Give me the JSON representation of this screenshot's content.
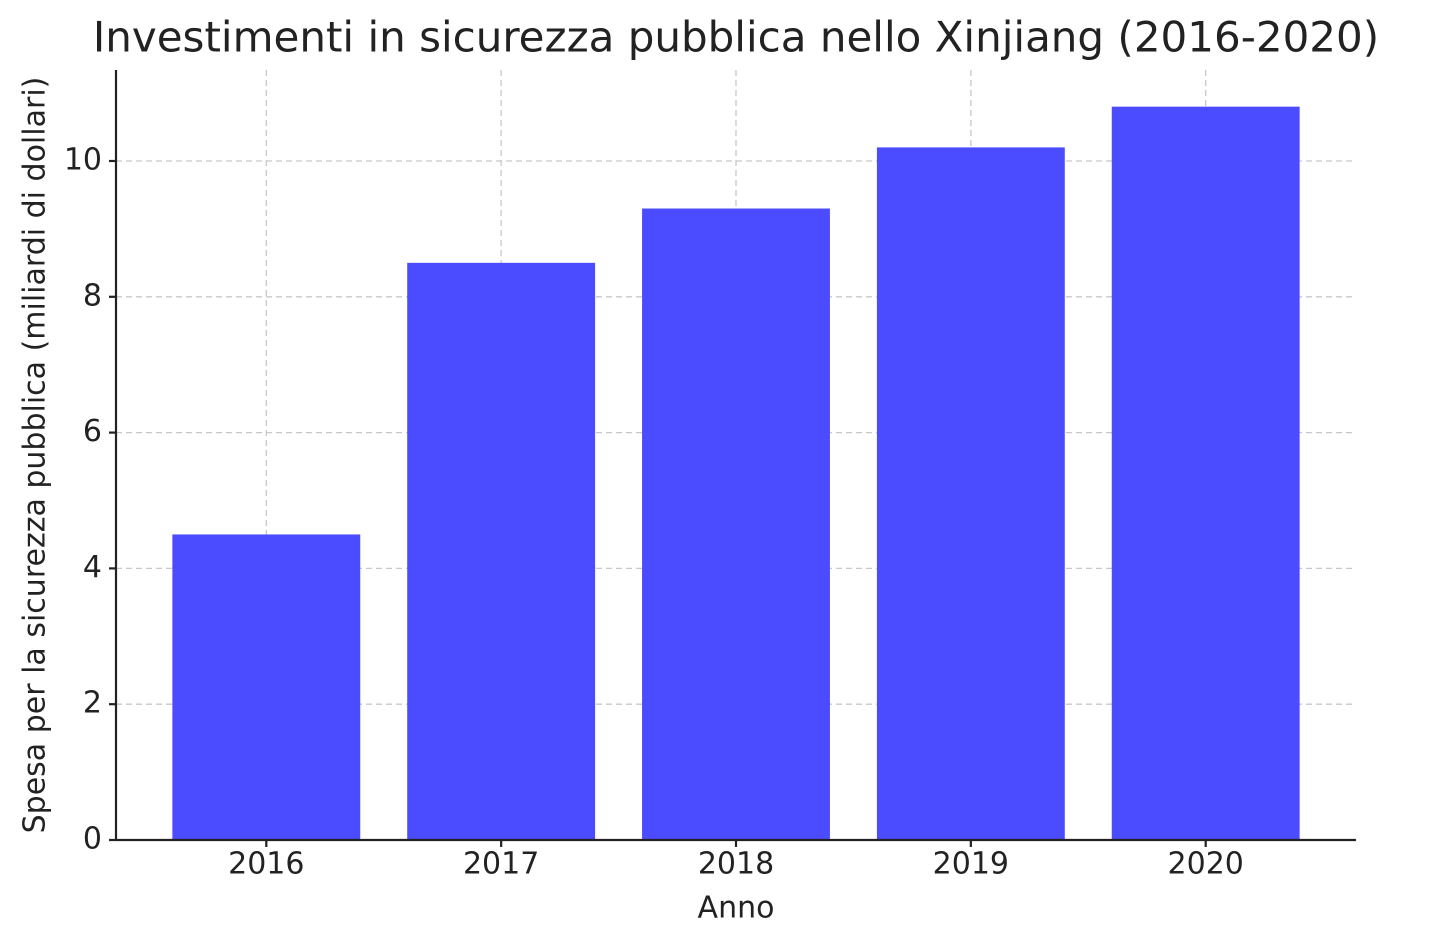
{
  "chart_data": {
    "type": "bar",
    "title": "Investimenti in sicurezza pubblica nello Xinjiang (2016-2020)",
    "x_label": "Anno",
    "y_label": "Spesa per la sicurezza pubblica (miliardi di dollari)",
    "categories": [
      "2016",
      "2017",
      "2018",
      "2019",
      "2020"
    ],
    "values": [
      4.5,
      8.5,
      9.3,
      10.2,
      10.8
    ],
    "color": "#4b4bff",
    "ylim": [
      0,
      11.34
    ],
    "yticks": [
      0,
      2,
      4,
      6,
      8,
      10
    ],
    "grid": true
  }
}
